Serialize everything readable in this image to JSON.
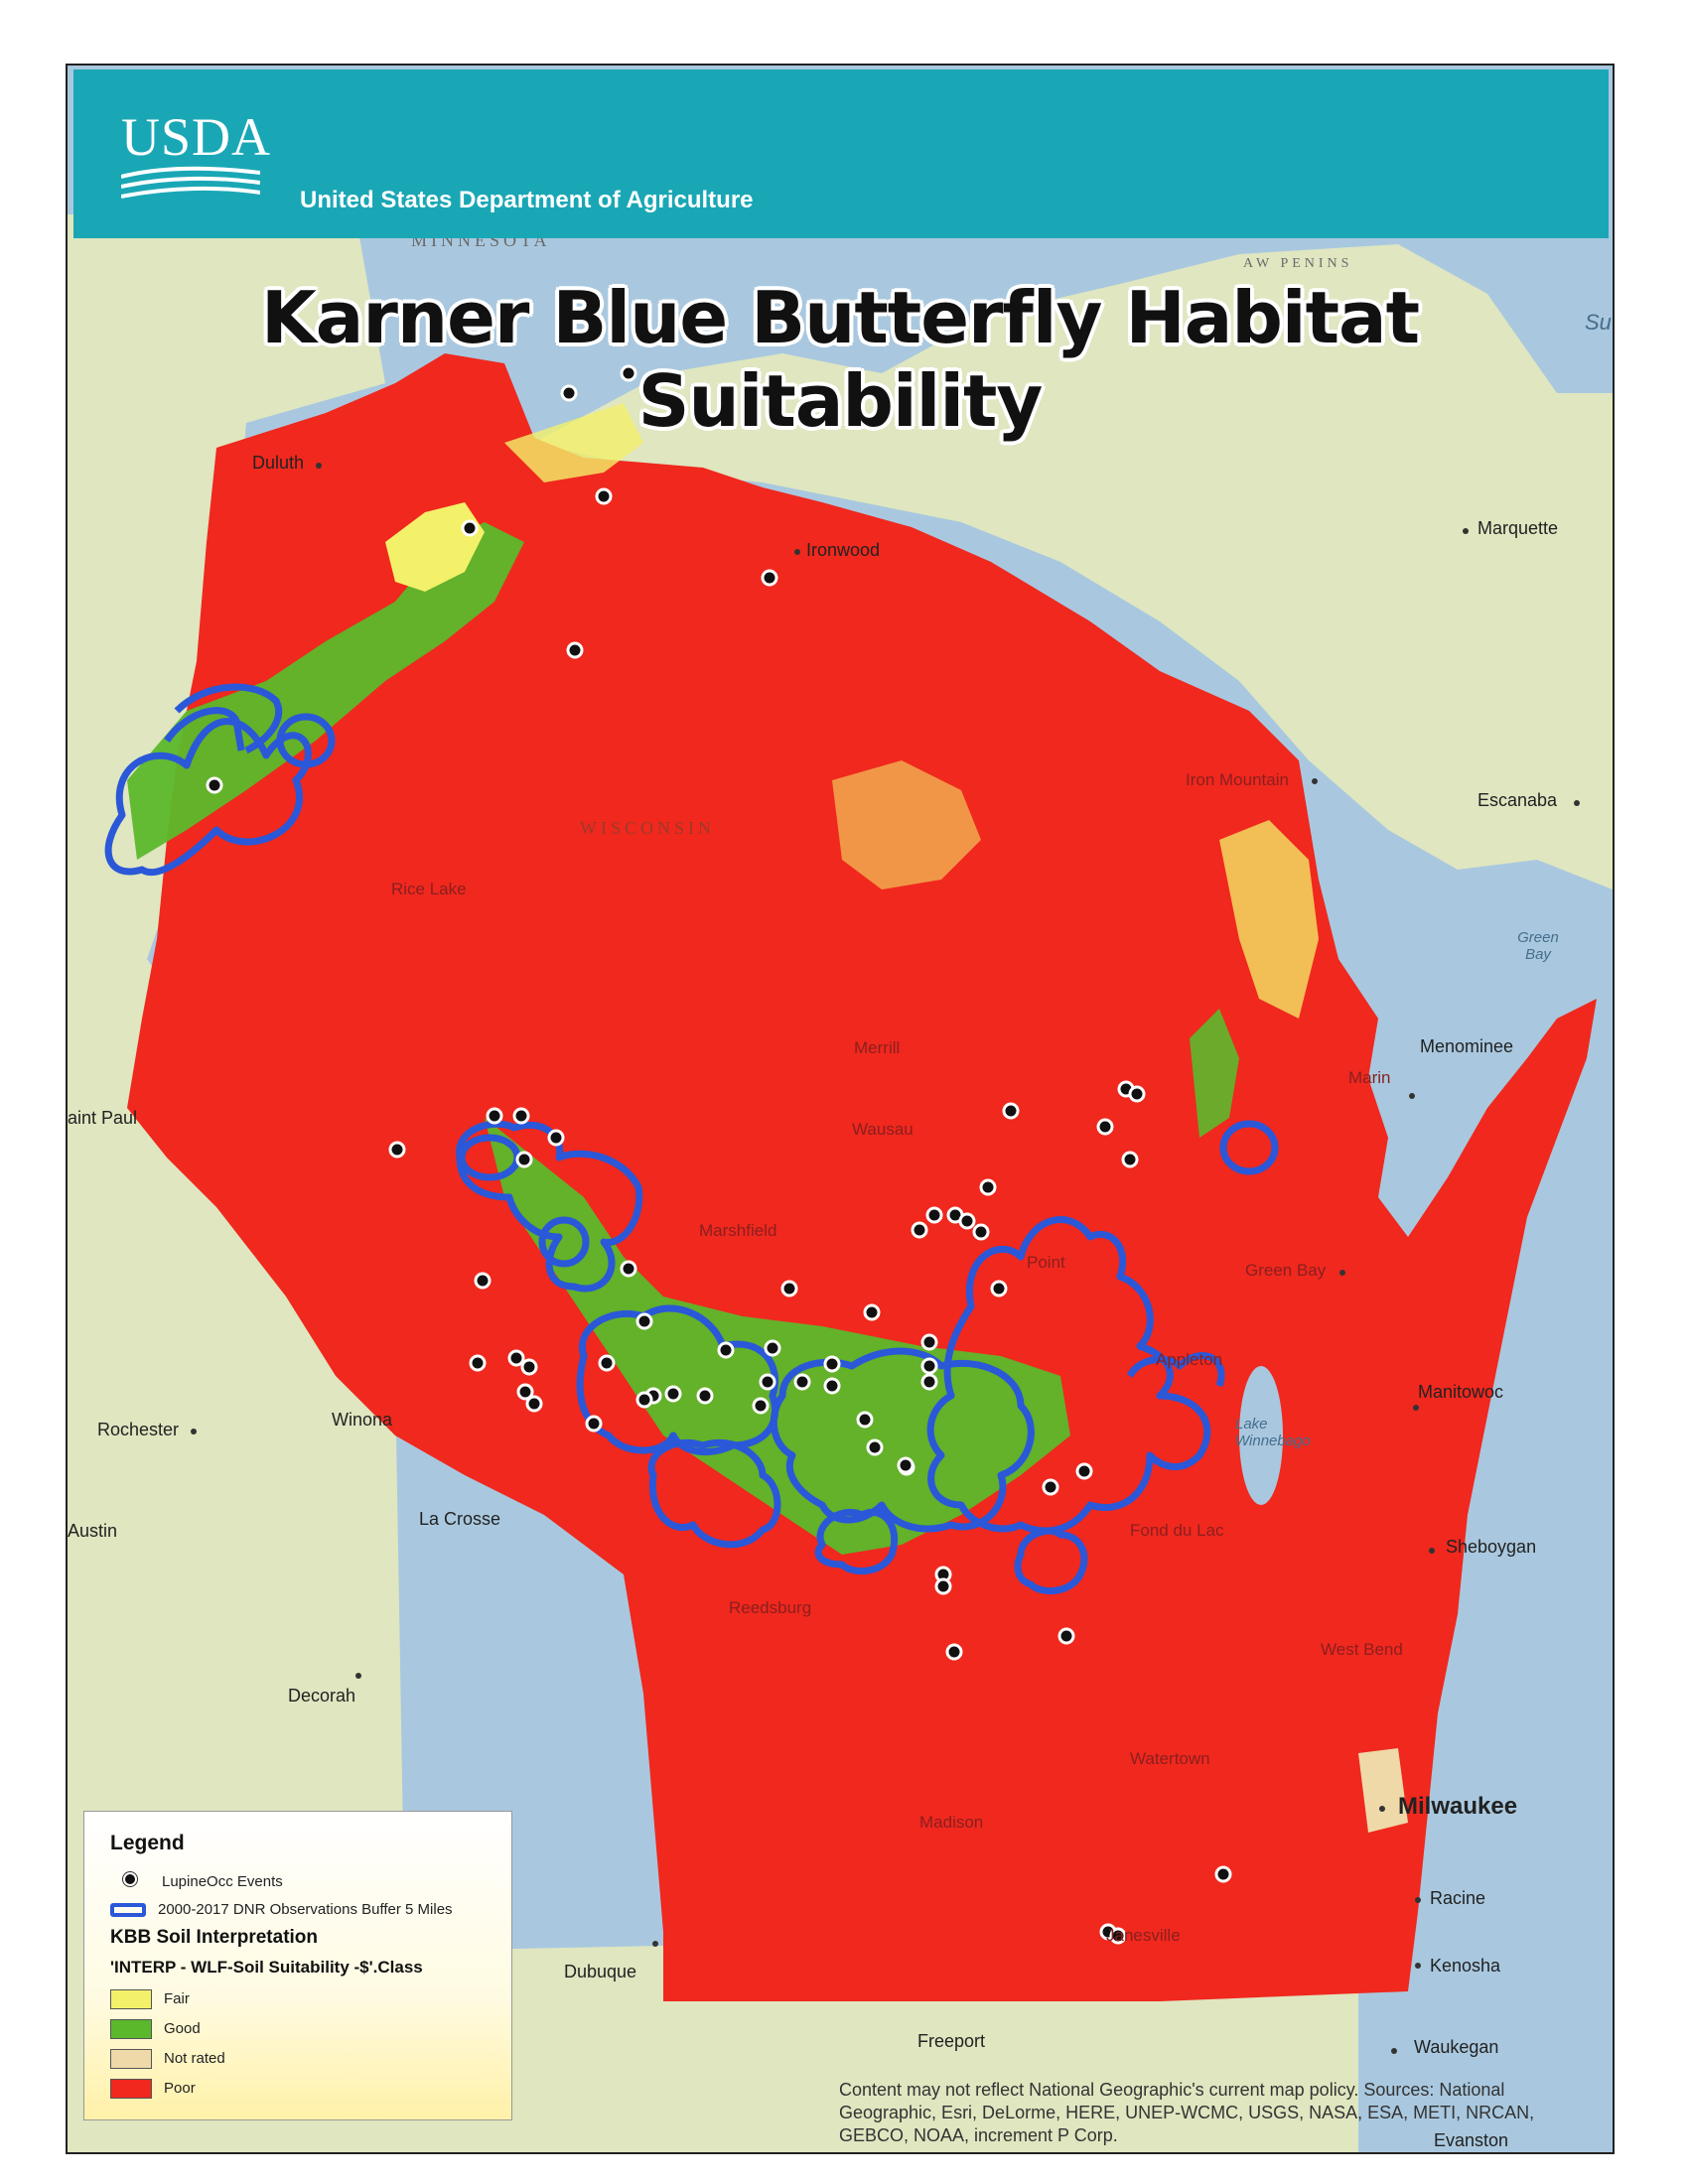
{
  "header": {
    "logo_text": "USDA",
    "department": "United States Department of Agriculture"
  },
  "map": {
    "title": "Karner Blue Butterfly Habitat Suitability",
    "colors": {
      "poor": "#f0281e",
      "good": "#5cb82b",
      "fair": "#f3f06a",
      "not_rated": "#efd9a8",
      "buffer": "#2a58d8",
      "land": "#dfe6c0",
      "water": "#a9c8df"
    },
    "places": {
      "minnesota": "MINNESOTA",
      "wisconsin": "WISCONSIN",
      "duluth": "Duluth",
      "ironwood": "Ironwood",
      "marquette": "Marquette",
      "escanaba": "Escanaba",
      "iron_mountain": "Iron Mountain",
      "green_bay_water": "Green Bay",
      "menominee": "Menominee",
      "marinette": "Marin",
      "saint_paul": "aint Paul",
      "rice_lake": "Rice Lake",
      "merrill": "Merrill",
      "wausau": "Wausau",
      "marshfield": "Marshfield",
      "stevens_point": "Point",
      "green_bay": "Green Bay",
      "appleton": "Appleton",
      "manitowoc": "Manitowoc",
      "lake_winnebago": "Lake Winnebago",
      "rochester": "Rochester",
      "winona": "Winona",
      "austin": "Austin",
      "la_crosse": "La Crosse",
      "fond_du_lac": "Fond du Lac",
      "sheboygan": "Sheboygan",
      "reedsburg": "Reedsburg",
      "west_bend": "West Bend",
      "decorah": "Decorah",
      "watertown": "Watertown",
      "milwaukee": "Milwaukee",
      "madison": "Madison",
      "racine": "Racine",
      "janesville": "Janesville",
      "kenosha": "Kenosha",
      "dubuque": "Dubuque",
      "freeport": "Freeport",
      "waukegan": "Waukegan",
      "evanston": "Evanston",
      "superior_lake": "Su",
      "upper_peninsula": "AW PENINS"
    }
  },
  "legend": {
    "title": "Legend",
    "occ_label": "LupineOcc Events",
    "buffer_label": "2000-2017 DNR Observations Buffer 5 Miles",
    "kbb_title": "KBB Soil Interpretation",
    "class_title": "'INTERP - WLF-Soil Suitability -$'.Class",
    "classes": [
      "Fair",
      "Good",
      "Not rated",
      "Poor"
    ]
  },
  "credits": "Content may not reflect National Geographic's current map policy. Sources: National Geographic, Esri, DeLorme, HERE, UNEP-WCMC, USGS, NASA, ESA, METI, NRCAN, GEBCO, NOAA, increment P Corp."
}
